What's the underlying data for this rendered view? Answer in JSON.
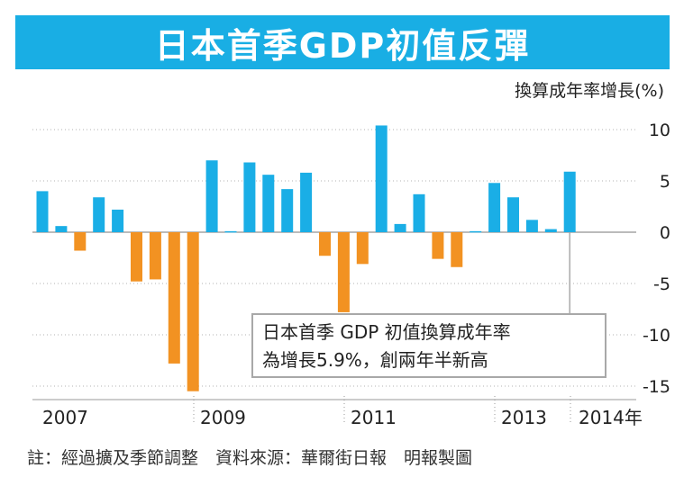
{
  "title": "日本首季GDP初值反彈",
  "unit_label": "換算成年率增長(%)",
  "note": {
    "line1": "日本首季 GDP 初值換算成年率",
    "line2": "為增長5.9%，創兩年半新高"
  },
  "footer": "註：經過擴及季節調整　資料來源：華爾街日報　明報製圖",
  "colors": {
    "title_bg": "#19aee4",
    "positive": "#1aaee6",
    "negative": "#f29222",
    "grid": "#b3b3b3",
    "zero_line": "#777777"
  },
  "chart_data": {
    "type": "bar",
    "title": "日本首季GDP初值反彈",
    "ylabel": "換算成年率增長(%)",
    "ylim": [
      -16,
      11
    ],
    "yticks": [
      10,
      5,
      0,
      -5,
      -10,
      -15
    ],
    "year_labels": [
      "2007",
      "2009",
      "2011",
      "2013",
      "2014年"
    ],
    "values": [
      4.0,
      0.6,
      -1.8,
      3.4,
      2.2,
      -4.8,
      -4.6,
      -12.8,
      -15.5,
      7.0,
      0.1,
      6.8,
      5.6,
      4.2,
      5.8,
      -2.3,
      -7.8,
      -3.1,
      10.4,
      0.8,
      3.7,
      -2.6,
      -3.4,
      0.1,
      4.8,
      3.4,
      1.2,
      0.3,
      5.9
    ],
    "grid": true,
    "annotation": "日本首季 GDP 初值換算成年率 為增長5.9%，創兩年半新高"
  }
}
